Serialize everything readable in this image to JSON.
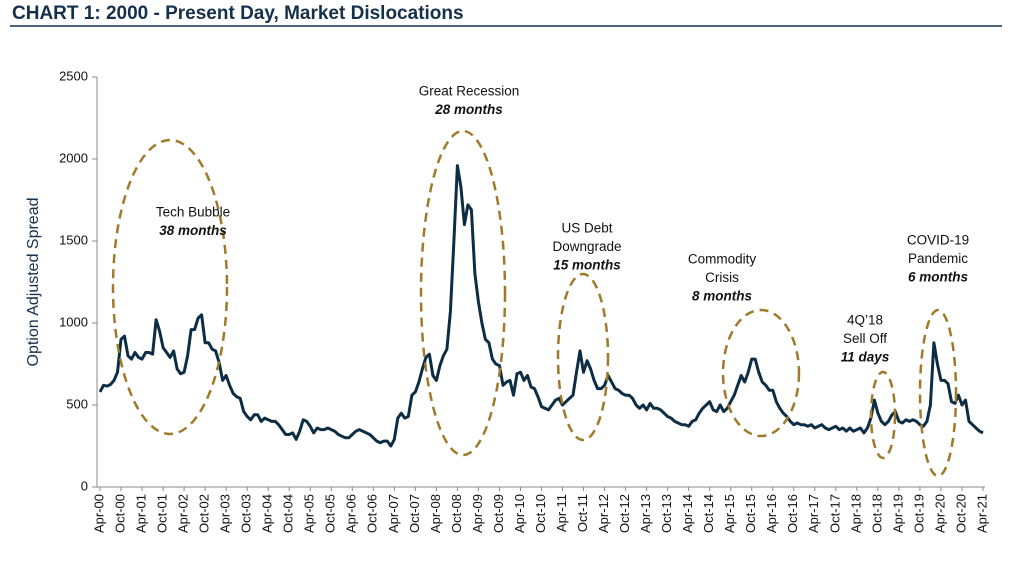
{
  "chart_data": {
    "type": "line",
    "title": "CHART 1: 2000 - Present Day, Market Dislocations",
    "y_label": "Option Adjusted Spread",
    "ylim": [
      0,
      2500
    ],
    "yticks": [
      0,
      500,
      1000,
      1500,
      2000,
      2500
    ],
    "color": "#0d2d44",
    "categories": [
      "Apr-00",
      null,
      null,
      null,
      null,
      null,
      "Oct-00",
      null,
      null,
      null,
      null,
      null,
      "Apr-01",
      null,
      null,
      null,
      null,
      null,
      "Oct-01",
      null,
      null,
      null,
      null,
      null,
      "Apr-02",
      null,
      null,
      null,
      null,
      null,
      "Oct-02",
      null,
      null,
      null,
      null,
      null,
      "Apr-03",
      null,
      null,
      null,
      null,
      null,
      "Oct-03",
      null,
      null,
      null,
      null,
      null,
      "Apr-04",
      null,
      null,
      null,
      null,
      null,
      "Oct-04",
      null,
      null,
      null,
      null,
      null,
      "Apr-05",
      null,
      null,
      null,
      null,
      null,
      "Oct-05",
      null,
      null,
      null,
      null,
      null,
      "Apr-06",
      null,
      null,
      null,
      null,
      null,
      "Oct-06",
      null,
      null,
      null,
      null,
      null,
      "Apr-07",
      null,
      null,
      null,
      null,
      null,
      "Oct-07",
      null,
      null,
      null,
      null,
      null,
      "Apr-08",
      null,
      null,
      null,
      null,
      null,
      "Oct-08",
      null,
      null,
      null,
      null,
      null,
      "Apr-09",
      null,
      null,
      null,
      null,
      null,
      "Oct-09",
      null,
      null,
      null,
      null,
      null,
      "Apr-10",
      null,
      null,
      null,
      null,
      null,
      "Oct-10",
      null,
      null,
      null,
      null,
      null,
      "Apr-11",
      null,
      null,
      null,
      null,
      null,
      "Oct-11",
      null,
      null,
      null,
      null,
      null,
      "Apr-12",
      null,
      null,
      null,
      null,
      null,
      "Oct-12",
      null,
      null,
      null,
      null,
      null,
      "Apr-13",
      null,
      null,
      null,
      null,
      null,
      "Oct-13",
      null,
      null,
      null,
      null,
      null,
      "Apr-14",
      null,
      null,
      null,
      null,
      null,
      "Oct-14",
      null,
      null,
      null,
      null,
      null,
      "Apr-15",
      null,
      null,
      null,
      null,
      null,
      "Oct-15",
      null,
      null,
      null,
      null,
      null,
      "Apr-16",
      null,
      null,
      null,
      null,
      null,
      "Oct-16",
      null,
      null,
      null,
      null,
      null,
      "Apr-17",
      null,
      null,
      null,
      null,
      null,
      "Oct-17",
      null,
      null,
      null,
      null,
      null,
      "Apr-18",
      null,
      null,
      null,
      null,
      null,
      "Oct-18",
      null,
      null,
      null,
      null,
      null,
      "Apr-19",
      null,
      null,
      null,
      null,
      null,
      "Oct-19",
      null,
      null,
      null,
      null,
      null,
      "Apr-20",
      null,
      null,
      null,
      null,
      null,
      "Oct-20",
      null,
      null,
      null,
      null,
      null,
      "Apr-21"
    ],
    "values": [
      580,
      620,
      615,
      625,
      650,
      700,
      900,
      920,
      800,
      780,
      820,
      790,
      780,
      820,
      820,
      810,
      1020,
      950,
      850,
      820,
      790,
      830,
      720,
      690,
      700,
      800,
      960,
      960,
      1030,
      1050,
      880,
      880,
      840,
      830,
      760,
      650,
      680,
      620,
      570,
      550,
      540,
      460,
      430,
      410,
      440,
      440,
      400,
      420,
      410,
      400,
      400,
      380,
      350,
      320,
      320,
      330,
      290,
      340,
      410,
      400,
      370,
      330,
      360,
      350,
      350,
      360,
      350,
      340,
      320,
      310,
      300,
      300,
      320,
      340,
      350,
      340,
      330,
      320,
      300,
      280,
      270,
      280,
      280,
      250,
      290,
      420,
      450,
      420,
      430,
      560,
      580,
      640,
      720,
      790,
      810,
      680,
      650,
      740,
      800,
      840,
      1070,
      1500,
      1960,
      1830,
      1600,
      1720,
      1690,
      1300,
      1130,
      1000,
      900,
      880,
      780,
      750,
      740,
      620,
      640,
      650,
      560,
      690,
      700,
      650,
      680,
      610,
      600,
      550,
      490,
      480,
      470,
      500,
      530,
      540,
      500,
      520,
      540,
      560,
      700,
      830,
      700,
      770,
      720,
      650,
      600,
      600,
      620,
      680,
      640,
      600,
      590,
      570,
      560,
      560,
      540,
      500,
      480,
      500,
      470,
      510,
      480,
      480,
      470,
      450,
      430,
      420,
      400,
      390,
      380,
      380,
      370,
      400,
      410,
      450,
      480,
      500,
      520,
      470,
      460,
      500,
      460,
      480,
      520,
      560,
      620,
      680,
      640,
      700,
      780,
      780,
      700,
      640,
      620,
      590,
      590,
      520,
      480,
      450,
      430,
      400,
      380,
      390,
      380,
      380,
      370,
      380,
      360,
      370,
      380,
      360,
      350,
      360,
      370,
      350,
      360,
      340,
      360,
      340,
      350,
      360,
      330,
      360,
      420,
      530,
      450,
      400,
      380,
      400,
      440,
      460,
      400,
      390,
      410,
      400,
      410,
      400,
      380,
      370,
      400,
      500,
      880,
      750,
      650,
      650,
      630,
      520,
      510,
      560,
      500,
      530,
      400,
      380,
      360,
      340,
      330
    ],
    "annotations": [
      {
        "lines": [
          "Tech Bubble"
        ],
        "duration": "38 months"
      },
      {
        "lines": [
          "Great Recession"
        ],
        "duration": "28 months"
      },
      {
        "lines": [
          "US Debt",
          "Downgrade"
        ],
        "duration": "15 months"
      },
      {
        "lines": [
          "Commodity",
          "Crisis"
        ],
        "duration": "8 months"
      },
      {
        "lines": [
          "4Q’18",
          "Sell Off"
        ],
        "duration": "11 days"
      },
      {
        "lines": [
          "COVID-19",
          "Pandemic"
        ],
        "duration": "6 months"
      }
    ]
  }
}
